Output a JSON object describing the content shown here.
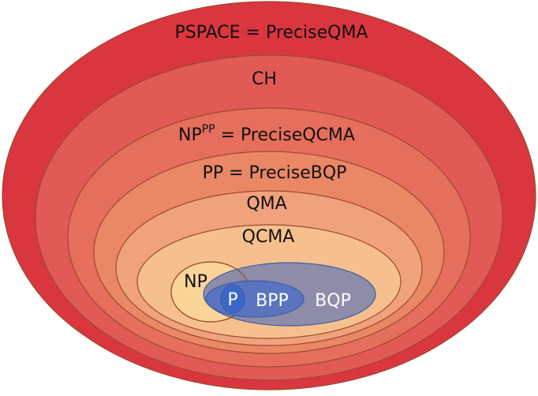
{
  "diagram": {
    "classes": {
      "pspace": {
        "label": "PSPACE = PreciseQMA",
        "fill": "#d9363f"
      },
      "ch": {
        "label": "CH",
        "fill": "#e25a55"
      },
      "nppp": {
        "label_base": "NP",
        "label_sup": "PP",
        "label_rest": " = PreciseQCMA",
        "fill": "#e66e5c"
      },
      "pp": {
        "label": "PP = PreciseBQP",
        "fill": "#ea8765"
      },
      "qma": {
        "label": "QMA",
        "fill": "#f0a27c"
      },
      "qcma": {
        "label": "QCMA",
        "fill": "#f6c08e"
      },
      "np": {
        "label": "NP",
        "fill": "#fbd598"
      },
      "bqp": {
        "label": "BQP",
        "fill": "#8e8ca8"
      },
      "bpp": {
        "label": "BPP",
        "fill": "#5a74bf"
      },
      "p": {
        "label": "P",
        "fill": "#3b67c8"
      }
    },
    "stroke_color": "#9c4a2e",
    "inner_stroke_color": "#3a5fa6"
  }
}
